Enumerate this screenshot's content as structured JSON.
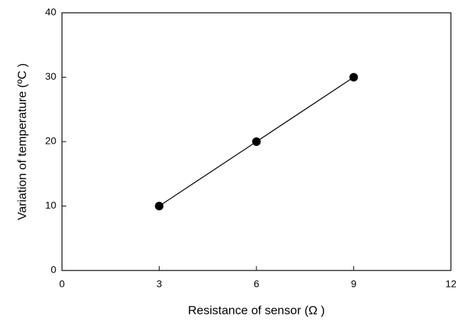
{
  "chart_data": {
    "type": "line",
    "x_label": "Resistance of sensor (Ω )",
    "y_label": "Variation of temperature (ºC )",
    "x": [
      3,
      6,
      9
    ],
    "values": [
      10,
      20,
      30
    ],
    "color": "#000000",
    "xlim": [
      0,
      12
    ],
    "xticks": [
      0,
      3,
      6,
      9,
      12
    ],
    "ylim": [
      0,
      40
    ],
    "yticks": [
      0,
      10,
      20,
      30,
      40
    ],
    "grid": false
  }
}
